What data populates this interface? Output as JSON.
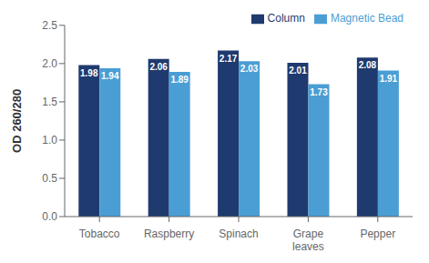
{
  "chart_data": {
    "type": "bar",
    "categories": [
      "Tobacco",
      "Raspberry",
      "Spinach",
      "Grape\nleaves",
      "Pepper"
    ],
    "series": [
      {
        "name": "Column",
        "color": "#1F3A6E",
        "values": [
          1.98,
          2.06,
          2.17,
          2.01,
          2.08
        ]
      },
      {
        "name": "Magnetic Bead",
        "color": "#4A9ED4",
        "values": [
          1.94,
          1.89,
          2.03,
          1.73,
          1.91
        ]
      }
    ],
    "ylabel": "OD 260/280",
    "ylim": [
      0.0,
      2.5
    ],
    "yticks": [
      {
        "value": 0,
        "label": "0.0"
      },
      0.5,
      {
        "value": 1,
        "label": "1.0"
      },
      1.5,
      {
        "value": 2,
        "label": "2.0"
      },
      2.5
    ],
    "grid": false,
    "legend": "upper right",
    "data_labels": true
  }
}
